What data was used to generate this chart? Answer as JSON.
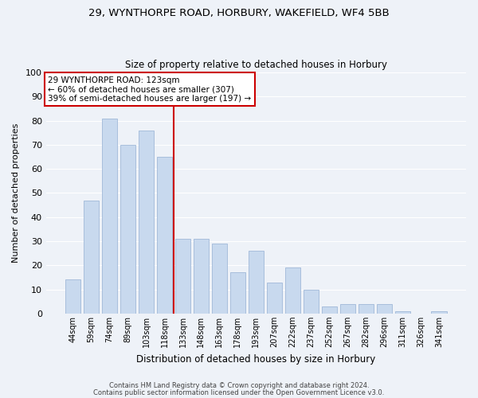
{
  "title_line1": "29, WYNTHORPE ROAD, HORBURY, WAKEFIELD, WF4 5BB",
  "title_line2": "Size of property relative to detached houses in Horbury",
  "xlabel": "Distribution of detached houses by size in Horbury",
  "ylabel": "Number of detached properties",
  "bar_labels": [
    "44sqm",
    "59sqm",
    "74sqm",
    "89sqm",
    "103sqm",
    "118sqm",
    "133sqm",
    "148sqm",
    "163sqm",
    "178sqm",
    "193sqm",
    "207sqm",
    "222sqm",
    "237sqm",
    "252sqm",
    "267sqm",
    "282sqm",
    "296sqm",
    "311sqm",
    "326sqm",
    "341sqm"
  ],
  "bar_values": [
    14,
    47,
    81,
    70,
    76,
    65,
    31,
    31,
    29,
    17,
    26,
    13,
    19,
    10,
    3,
    4,
    4,
    4,
    1,
    0,
    1
  ],
  "bar_color": "#c8d9ee",
  "bar_edge_color": "#a0b8d8",
  "vline_x": 5.5,
  "vline_color": "#cc0000",
  "annotation_title": "29 WYNTHORPE ROAD: 123sqm",
  "annotation_line1": "← 60% of detached houses are smaller (307)",
  "annotation_line2": "39% of semi-detached houses are larger (197) →",
  "annotation_box_color": "#ffffff",
  "annotation_box_edge": "#cc0000",
  "ylim": [
    0,
    100
  ],
  "yticks": [
    0,
    10,
    20,
    30,
    40,
    50,
    60,
    70,
    80,
    90,
    100
  ],
  "footer_line1": "Contains HM Land Registry data © Crown copyright and database right 2024.",
  "footer_line2": "Contains public sector information licensed under the Open Government Licence v3.0.",
  "background_color": "#eef2f8",
  "grid_color": "#ffffff",
  "title_fontsize": 9.5,
  "subtitle_fontsize": 8.5,
  "bar_width": 0.85
}
